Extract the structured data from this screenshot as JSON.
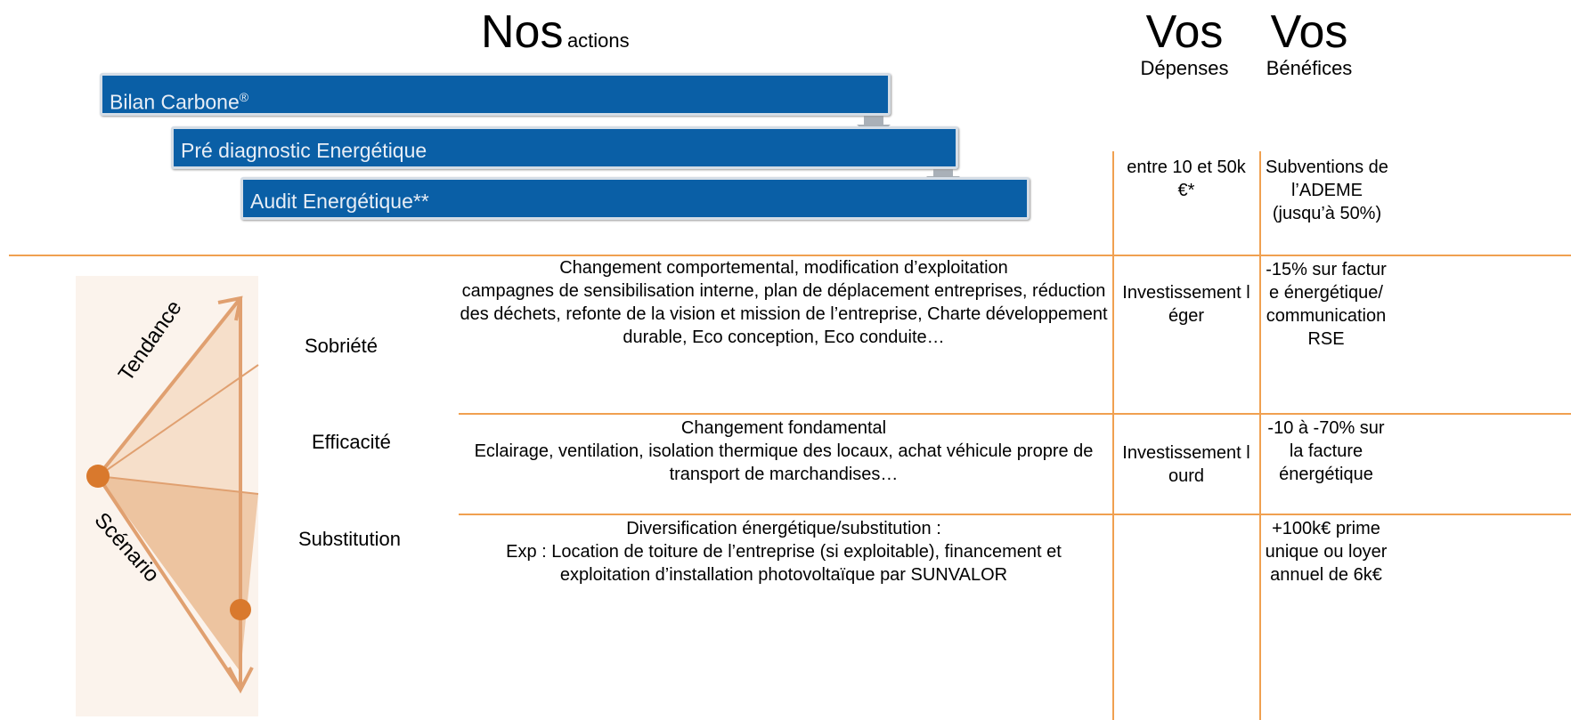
{
  "header": {
    "title_big": "Nos",
    "title_small": "actions",
    "col_costs": {
      "big": "Vos",
      "small": "Dépenses"
    },
    "col_benefits": {
      "big": "Vos",
      "small": "Bénéfices"
    }
  },
  "steps": [
    {
      "label": "Bilan Carbone",
      "sup": "®"
    },
    {
      "label": "Pré diagnostic Energétique"
    },
    {
      "label": "Audit Energétique**"
    }
  ],
  "audit_row": {
    "cost": "entre 10 et 50k€*",
    "benefit": "Subventions de l’ADEME (jusqu’à 50%)"
  },
  "diagram": {
    "trend": "Tendance",
    "scenario": "Scénario"
  },
  "rows": [
    {
      "label": "Sobriété",
      "title": "Changement comportemental, modification d’exploitation",
      "body": "campagnes de sensibilisation interne, plan de déplacement entreprises, réduction des déchets, refonte de la vision et mission de l’entreprise, Charte développement durable, Eco conception, Eco conduite…",
      "cost": "Investissement léger",
      "benefit": "-15% sur facture énergétique/ communication RSE"
    },
    {
      "label": "Efficacité",
      "title": "Changement fondamental",
      "body": "Eclairage, ventilation, isolation thermique des locaux, achat véhicule propre de transport de marchandises…",
      "cost": "Investissement lourd",
      "benefit": "-10 à  -70% sur la facture énergétique"
    },
    {
      "label": "Substitution",
      "title": "Diversification énergétique/substitution :",
      "body": "Exp : Location de toiture de l’entreprise (si exploitable), financement et exploitation d’installation photovoltaïque par SUNVALOR",
      "cost": null,
      "benefit": "+100k€ prime unique ou loyer annuel de 6k€"
    }
  ]
}
